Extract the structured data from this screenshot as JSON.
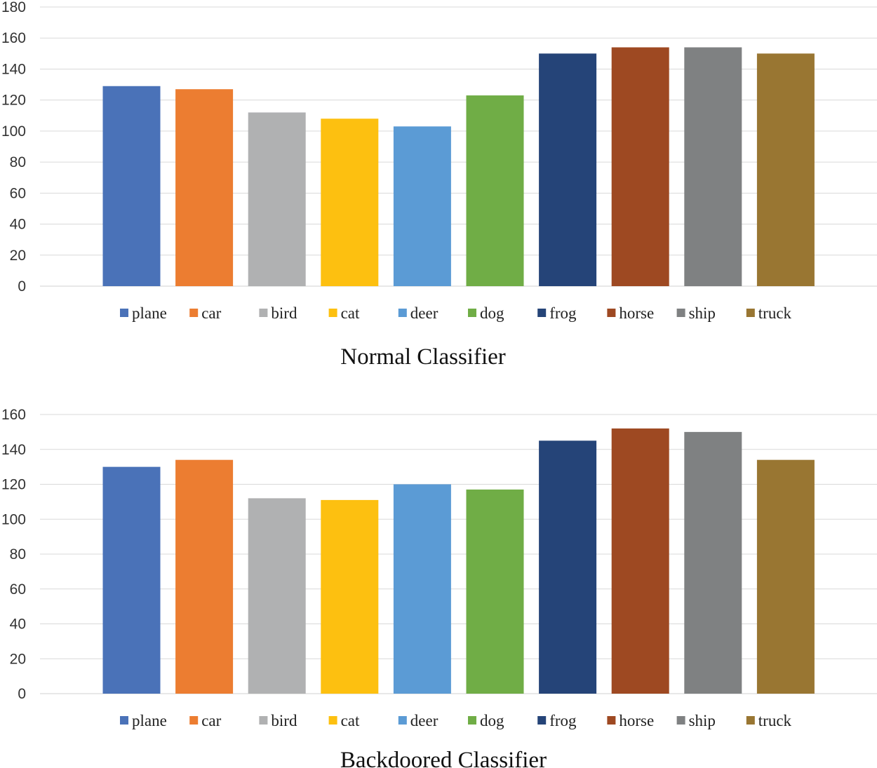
{
  "chart_data": [
    {
      "type": "bar",
      "title": "Normal Classifier",
      "xlabel": "",
      "ylabel": "",
      "ylim": [
        0,
        180
      ],
      "ytick_step": 20,
      "grid": true,
      "legend_position": "bottom",
      "categories": [
        "plane",
        "car",
        "bird",
        "cat",
        "deer",
        "dog",
        "frog",
        "horse",
        "ship",
        "truck"
      ],
      "values": [
        129,
        127,
        112,
        108,
        103,
        123,
        150,
        154,
        154,
        150
      ],
      "colors": [
        "#4a72b8",
        "#ec7d31",
        "#b0b1b2",
        "#fdc010",
        "#5b9bd5",
        "#70ad46",
        "#254478",
        "#9e4922",
        "#7f8182",
        "#997632"
      ]
    },
    {
      "type": "bar",
      "title": "Backdoored Classifier",
      "xlabel": "",
      "ylabel": "",
      "ylim": [
        0,
        160
      ],
      "ytick_step": 20,
      "grid": true,
      "legend_position": "bottom",
      "categories": [
        "plane",
        "car",
        "bird",
        "cat",
        "deer",
        "dog",
        "frog",
        "horse",
        "ship",
        "truck"
      ],
      "values": [
        130,
        134,
        112,
        111,
        120,
        117,
        145,
        152,
        150,
        134
      ],
      "colors": [
        "#4a72b8",
        "#ec7d31",
        "#b0b1b2",
        "#fdc010",
        "#5b9bd5",
        "#70ad46",
        "#254478",
        "#9e4922",
        "#7f8182",
        "#997632"
      ]
    }
  ]
}
